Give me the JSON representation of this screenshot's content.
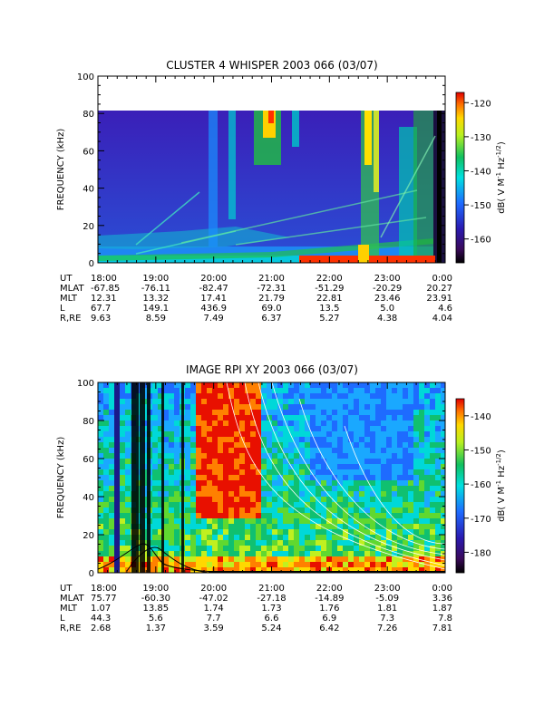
{
  "chart_data": [
    {
      "type": "heatmap",
      "title": "CLUSTER 4 WHISPER 2003 066 (03/07)",
      "ylabel": "FREQUENCY (kHz)",
      "ylim": [
        0,
        100
      ],
      "y_ticks": [
        "0",
        "20",
        "40",
        "60",
        "80",
        "100"
      ],
      "data_top_khz": 80,
      "x_ticks": [
        "18:00",
        "19:00",
        "20:00",
        "21:00",
        "22:00",
        "23:00",
        "0:00"
      ],
      "colorbar_label": "dB( V M-1 Hz-1/2)",
      "colorbar_ticks": [
        "-120",
        "-130",
        "-140",
        "-150",
        "-160"
      ],
      "colorbar_range": [
        -167,
        -117
      ],
      "ephemeris": [
        {
          "label": "UT",
          "values": [
            "18:00",
            "19:00",
            "20:00",
            "21:00",
            "22:00",
            "23:00",
            "0:00"
          ]
        },
        {
          "label": "MLAT",
          "values": [
            "-67.85",
            "-76.11",
            "-82.47",
            "-72.31",
            "-51.29",
            "-20.29",
            "20.27"
          ]
        },
        {
          "label": "MLT",
          "values": [
            "12.31",
            "13.32",
            "17.41",
            "21.79",
            "22.81",
            "23.46",
            "23.91"
          ]
        },
        {
          "label": "L",
          "values": [
            "67.7",
            "149.1",
            "436.9",
            "69.0",
            "13.5",
            "5.0",
            "4.6"
          ]
        },
        {
          "label": "R,RE",
          "values": [
            "9.63",
            "8.59",
            "7.49",
            "6.37",
            "5.27",
            "4.38",
            "4.04"
          ]
        }
      ]
    },
    {
      "type": "heatmap",
      "title": "IMAGE RPI XY 2003 066 (03/07)",
      "ylabel": "FREQUENCY (kHz)",
      "ylim": [
        0,
        100
      ],
      "y_ticks": [
        "0",
        "20",
        "40",
        "60",
        "80",
        "100"
      ],
      "x_ticks": [
        "18:00",
        "19:00",
        "20:00",
        "21:00",
        "22:00",
        "23:00",
        "0:00"
      ],
      "colorbar_label": "dB( V M-1 Hz-1/2)",
      "colorbar_ticks": [
        "-140",
        "-150",
        "-160",
        "-170",
        "-180"
      ],
      "colorbar_range": [
        -186,
        -135
      ],
      "ephemeris": [
        {
          "label": "UT",
          "values": [
            "18:00",
            "19:00",
            "20:00",
            "21:00",
            "22:00",
            "23:00",
            "0:00"
          ]
        },
        {
          "label": "MLAT",
          "values": [
            "75.77",
            "-60.30",
            "-47.02",
            "-27.18",
            "-14.89",
            "-5.09",
            "3.36"
          ]
        },
        {
          "label": "MLT",
          "values": [
            "1.07",
            "13.85",
            "1.74",
            "1.73",
            "1.76",
            "1.81",
            "1.87"
          ]
        },
        {
          "label": "L",
          "values": [
            "44.3",
            "5.6",
            "7.7",
            "6.6",
            "6.9",
            "7.3",
            "7.8"
          ]
        },
        {
          "label": "R,RE",
          "values": [
            "2.68",
            "1.37",
            "3.59",
            "5.24",
            "6.42",
            "7.26",
            "7.81"
          ]
        }
      ]
    }
  ]
}
